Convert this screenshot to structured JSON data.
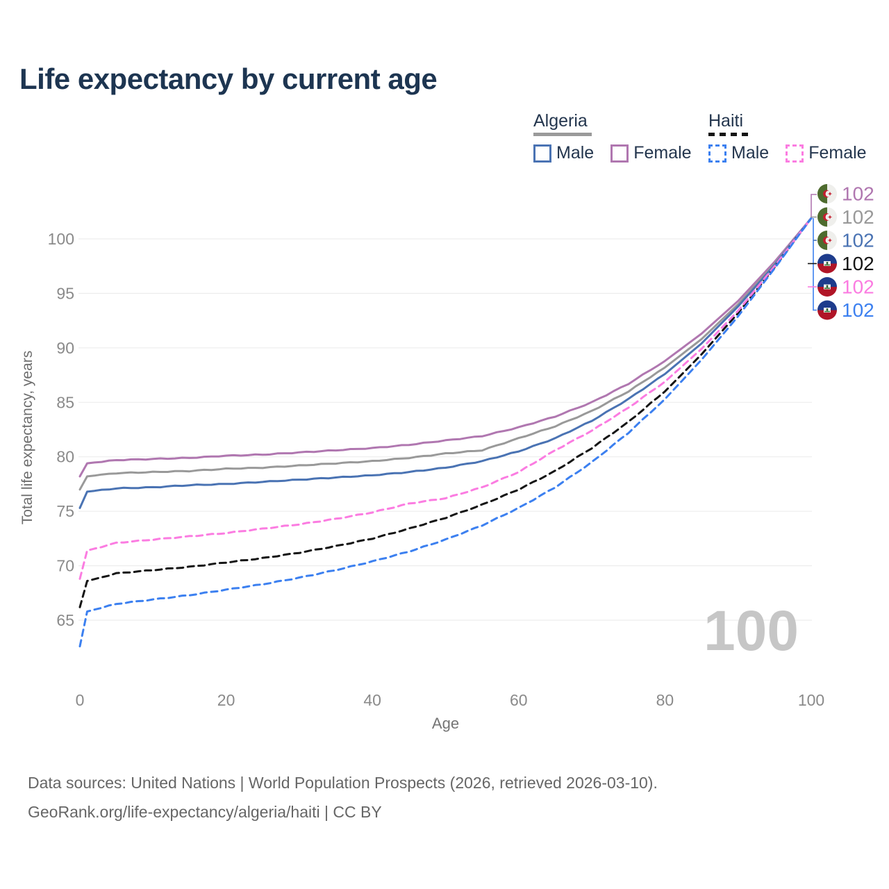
{
  "title": "Life expectancy by current age",
  "watermark": "100",
  "legend": {
    "groups": [
      {
        "country": "Algeria",
        "line_style": "solid",
        "underline_color": "#9a9a9a",
        "items": [
          {
            "label": "Male",
            "color": "#4a73b3"
          },
          {
            "label": "Female",
            "color": "#b077b0"
          }
        ]
      },
      {
        "country": "Haiti",
        "line_style": "dashed",
        "underline_color": "#141414",
        "items": [
          {
            "label": "Male",
            "color": "#3c80f0"
          },
          {
            "label": "Female",
            "color": "#fb7ce1"
          }
        ]
      }
    ]
  },
  "chart_data": {
    "type": "line",
    "title": "Life expectancy by current age",
    "xlabel": "Age",
    "ylabel": "Total life expectancy, years",
    "xlim": [
      0,
      100
    ],
    "ylim": [
      62,
      103
    ],
    "x_ticks": [
      0,
      20,
      40,
      60,
      80,
      100
    ],
    "y_ticks": [
      65,
      70,
      75,
      80,
      85,
      90,
      95,
      100
    ],
    "grid": "horizontal",
    "legend_position": "top-right",
    "x": [
      0,
      1,
      5,
      10,
      15,
      20,
      25,
      30,
      35,
      40,
      45,
      50,
      55,
      60,
      65,
      70,
      75,
      80,
      85,
      90,
      95,
      100
    ],
    "series": [
      {
        "name": "Algeria Female",
        "country": "Algeria",
        "sex": "Female",
        "color": "#b077b0",
        "dash": "solid",
        "end_label": "102",
        "flag": "algeria",
        "values": [
          78.2,
          79.4,
          79.7,
          79.8,
          79.9,
          80.1,
          80.2,
          80.4,
          80.6,
          80.8,
          81.1,
          81.5,
          81.9,
          82.7,
          83.7,
          85.0,
          86.7,
          88.8,
          91.3,
          94.3,
          97.9,
          101.9
        ]
      },
      {
        "name": "Algeria",
        "country": "Algeria",
        "sex": "Both",
        "color": "#999999",
        "dash": "solid",
        "end_label": "102",
        "flag": "algeria",
        "values": [
          77.0,
          78.2,
          78.5,
          78.6,
          78.7,
          78.9,
          79.0,
          79.2,
          79.4,
          79.6,
          79.9,
          80.3,
          80.6,
          81.7,
          82.8,
          84.2,
          86.0,
          88.2,
          90.8,
          94.0,
          97.7,
          101.9
        ]
      },
      {
        "name": "Algeria Male",
        "country": "Algeria",
        "sex": "Male",
        "color": "#4a73b3",
        "dash": "solid",
        "end_label": "102",
        "flag": "algeria",
        "values": [
          75.3,
          76.8,
          77.1,
          77.2,
          77.4,
          77.5,
          77.7,
          77.9,
          78.1,
          78.3,
          78.6,
          79.0,
          79.6,
          80.5,
          81.7,
          83.3,
          85.3,
          87.6,
          90.4,
          93.8,
          97.6,
          101.9
        ]
      },
      {
        "name": "Haiti",
        "country": "Haiti",
        "sex": "Both",
        "color": "#151515",
        "dash": "dashed",
        "end_label": "102",
        "flag": "haiti",
        "values": [
          66.2,
          68.6,
          69.3,
          69.6,
          69.9,
          70.3,
          70.7,
          71.2,
          71.8,
          72.5,
          73.4,
          74.4,
          75.6,
          77.0,
          78.7,
          80.8,
          83.2,
          86.0,
          89.4,
          93.2,
          97.4,
          101.9
        ]
      },
      {
        "name": "Haiti Female",
        "country": "Haiti",
        "sex": "Female",
        "color": "#fb7ce1",
        "dash": "dashed",
        "end_label": "102",
        "flag": "haiti",
        "values": [
          68.8,
          71.4,
          72.1,
          72.4,
          72.7,
          73.0,
          73.4,
          73.8,
          74.3,
          74.9,
          75.7,
          76.2,
          77.2,
          78.6,
          80.6,
          82.4,
          84.5,
          86.9,
          89.9,
          93.4,
          97.5,
          101.9
        ]
      },
      {
        "name": "Haiti Male",
        "country": "Haiti",
        "sex": "Male",
        "color": "#3c80f0",
        "dash": "dashed",
        "end_label": "102",
        "flag": "haiti",
        "values": [
          62.6,
          65.8,
          66.5,
          66.9,
          67.3,
          67.8,
          68.3,
          68.9,
          69.6,
          70.4,
          71.3,
          72.4,
          73.7,
          75.3,
          77.2,
          79.5,
          82.2,
          85.3,
          88.9,
          92.9,
          97.3,
          101.9
        ]
      }
    ],
    "end_label_rows": [
      "Algeria Female",
      "Algeria",
      "Algeria Male",
      "Haiti",
      "Haiti Female",
      "Haiti Male"
    ]
  },
  "footer": {
    "line1": "Data sources: United Nations | World Population Prospects (2026, retrieved 2026-03-10).",
    "line2": "GeoRank.org/life-expectancy/algeria/haiti | CC BY"
  }
}
